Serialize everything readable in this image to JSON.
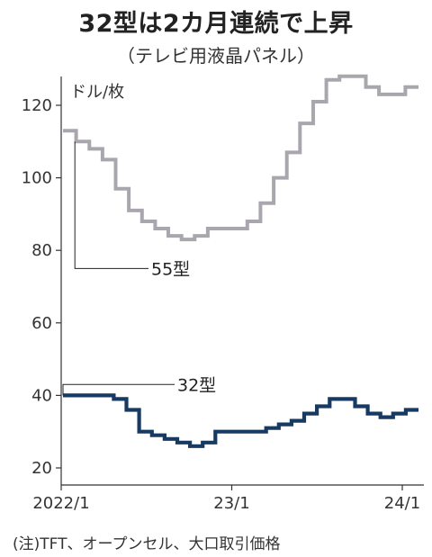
{
  "chart_data": {
    "type": "line",
    "title": "32型は2カ月連続で上昇",
    "subtitle": "（テレビ用液晶パネル）",
    "ylabel": "ドル/枚",
    "note": "(注)TFT、オープンセル、大口取引価格",
    "ylim": [
      18,
      130
    ],
    "yticks": [
      20,
      40,
      60,
      80,
      100,
      120
    ],
    "x_range": [
      0,
      25
    ],
    "xticks": [
      {
        "pos": 0,
        "label": "2022/1"
      },
      {
        "pos": 12,
        "label": "23/1"
      },
      {
        "pos": 24,
        "label": "24/1"
      }
    ],
    "step": true,
    "grid": false,
    "legend": "inline labels",
    "colors": {
      "55型": "#a9a7ad",
      "32型": "#173a63"
    },
    "series": [
      {
        "name": "55型",
        "label_value": 75,
        "values": [
          113,
          110,
          108,
          105,
          97,
          91,
          88,
          86,
          84,
          83,
          84,
          86,
          86,
          86,
          88,
          93,
          100,
          107,
          115,
          121,
          127,
          128,
          128,
          125,
          123,
          123,
          125
        ]
      },
      {
        "name": "32型",
        "label_value": 43,
        "values": [
          40,
          40,
          40,
          40,
          39,
          36,
          30,
          29,
          28,
          27,
          26,
          27,
          30,
          30,
          30,
          30,
          31,
          32,
          33,
          35,
          37,
          39,
          39,
          37,
          35,
          34,
          35,
          36
        ]
      }
    ]
  }
}
